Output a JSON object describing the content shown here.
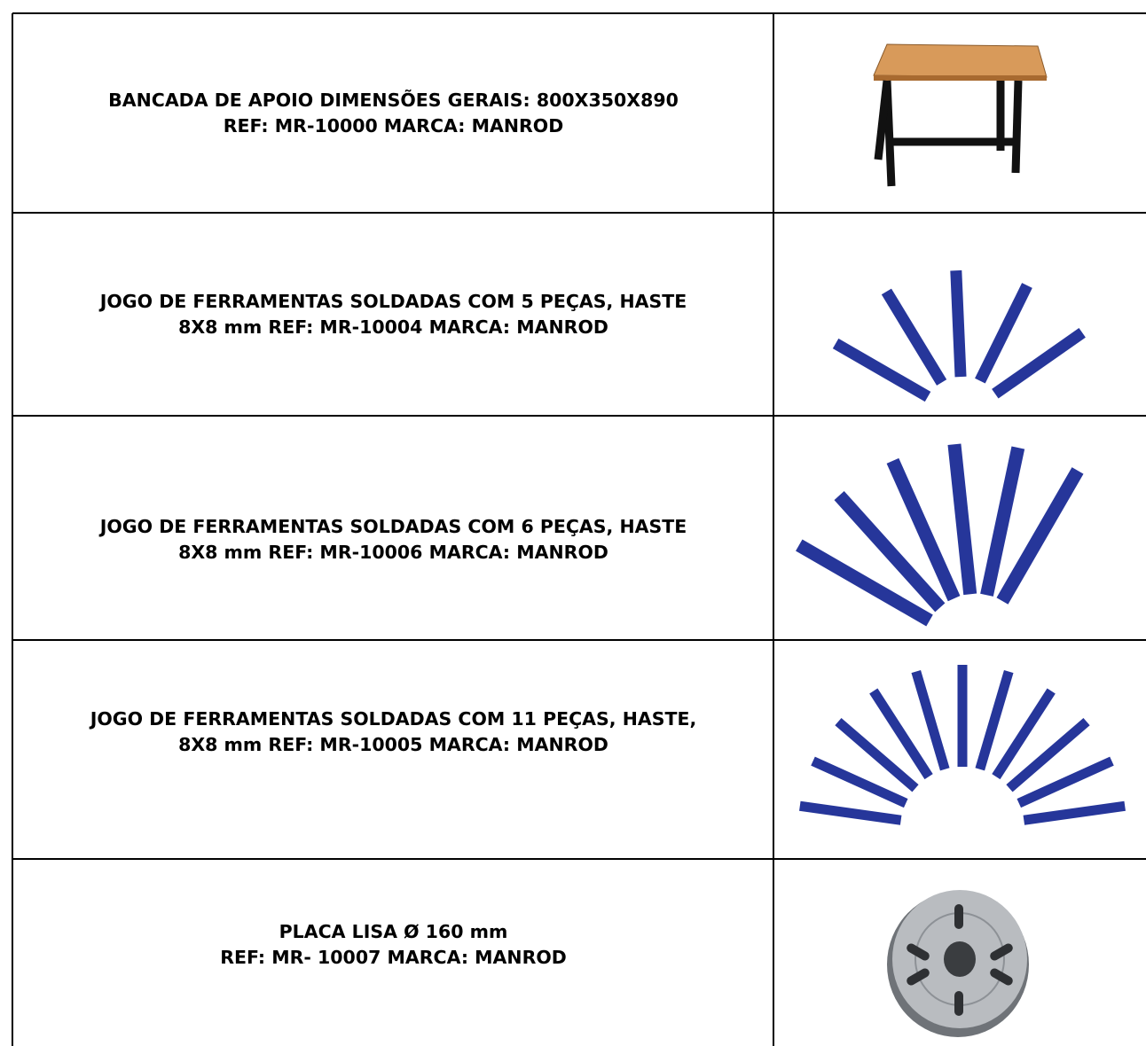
{
  "table": {
    "rows": [
      {
        "lines": [
          "BANCADA DE APOIO DIMENSÕES GERAIS: 800X350X890",
          "REF: MR-10000 MARCA: MANROD"
        ]
      },
      {
        "lines": [
          "JOGO DE FERRAMENTAS SOLDADAS COM 5 PEÇAS, HASTE",
          "8X8 mm REF: MR-10004 MARCA: MANROD"
        ]
      },
      {
        "lines": [
          "JOGO DE FERRAMENTAS SOLDADAS COM 6 PEÇAS, HASTE",
          "8X8 mm REF: MR-10006 MARCA: MANROD"
        ]
      },
      {
        "lines": [
          "JOGO DE FERRAMENTAS SOLDADAS COM 11 PEÇAS, HASTE,",
          "8X8 mm REF: MR-10005 MARCA: MANROD"
        ]
      },
      {
        "lines": [
          "PLACA LISA Ø 160 mm",
          "REF: MR- 10007 MARCA: MANROD"
        ]
      }
    ]
  }
}
